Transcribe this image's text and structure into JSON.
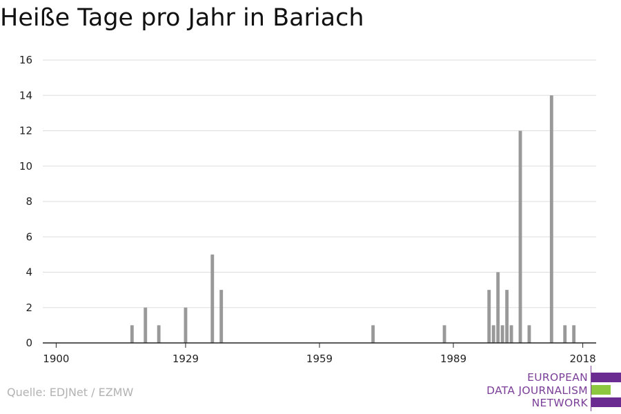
{
  "title": "Heiße Tage pro Jahr in Bariach",
  "source": "Quelle: EDJNet / EZMW",
  "logo": {
    "lines": [
      "EUROPEAN",
      "DATA JOURNALISM",
      "NETWORK"
    ],
    "colors": {
      "purple": "#6a2c91",
      "green": "#8dc63f"
    }
  },
  "chart_data": {
    "type": "bar",
    "title": "Heiße Tage pro Jahr in Bariach",
    "xlabel": "",
    "ylabel": "",
    "xlim": [
      1897,
      2021
    ],
    "ylim": [
      0,
      16
    ],
    "yticks": [
      0,
      2,
      4,
      6,
      8,
      10,
      12,
      14,
      16
    ],
    "xticks": [
      1900,
      1929,
      1959,
      1989,
      2018
    ],
    "grid": true,
    "bar_color": "#999999",
    "series": [
      {
        "x": [
          1917,
          1920,
          1923,
          1929,
          1935,
          1937,
          1971,
          1987,
          1997,
          1998,
          1999,
          2000,
          2001,
          2002,
          2004,
          2006,
          2011,
          2014,
          2016
        ],
        "values": [
          1,
          2,
          1,
          2,
          5,
          3,
          1,
          1,
          3,
          1,
          4,
          1,
          3,
          1,
          12,
          1,
          14,
          1,
          1
        ]
      }
    ]
  }
}
